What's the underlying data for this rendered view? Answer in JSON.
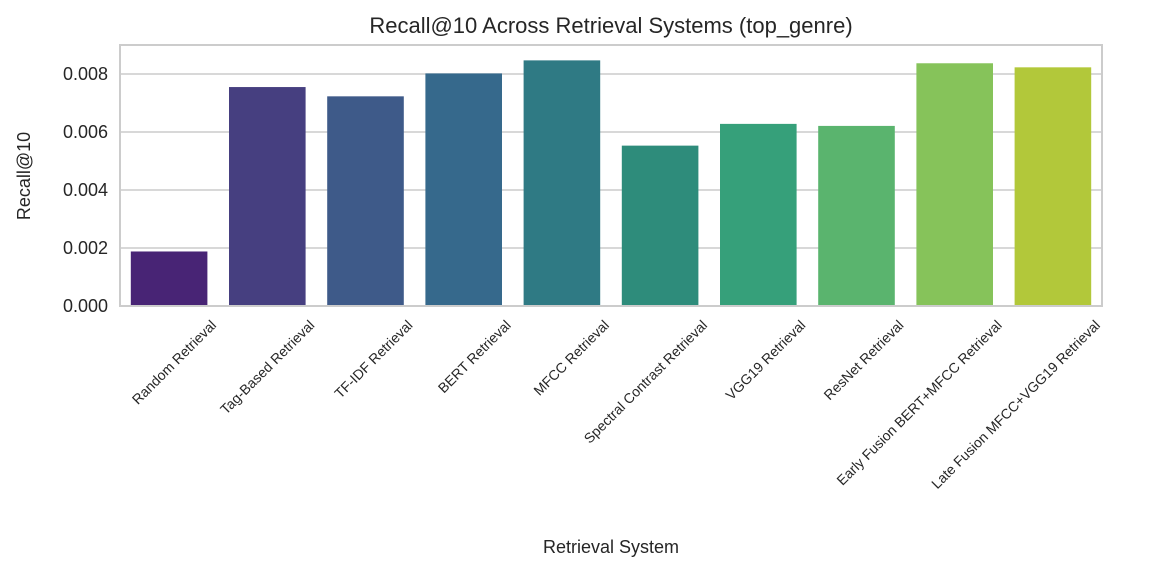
{
  "chart_data": {
    "type": "bar",
    "title": "Recall@10 Across Retrieval Systems (top_genre)",
    "xlabel": "Retrieval System",
    "ylabel": "Recall@10",
    "ylim": [
      0,
      0.009
    ],
    "yticks": [
      0.0,
      0.002,
      0.004,
      0.006,
      0.008
    ],
    "ytick_labels": [
      "0.000",
      "0.002",
      "0.004",
      "0.006",
      "0.008"
    ],
    "grid": "horizontal",
    "categories": [
      "Random Retrieval",
      "Tag-Based Retrieval",
      "TF-IDF Retrieval",
      "BERT Retrieval",
      "MFCC Retrieval",
      "Spectral Contrast Retrieval",
      "VGG19 Retrieval",
      "ResNet Retrieval",
      "Early Fusion BERT+MFCC Retrieval",
      "Late Fusion MFCC+VGG19 Retrieval"
    ],
    "values": [
      0.00188,
      0.00755,
      0.00723,
      0.00802,
      0.00847,
      0.00553,
      0.00628,
      0.00621,
      0.00837,
      0.00823
    ],
    "colors": [
      "#482475",
      "#463f80",
      "#3e5a89",
      "#36698c",
      "#2f7a84",
      "#2e8c7b",
      "#36a07a",
      "#5ab46e",
      "#86c35a",
      "#b2c83a"
    ]
  }
}
